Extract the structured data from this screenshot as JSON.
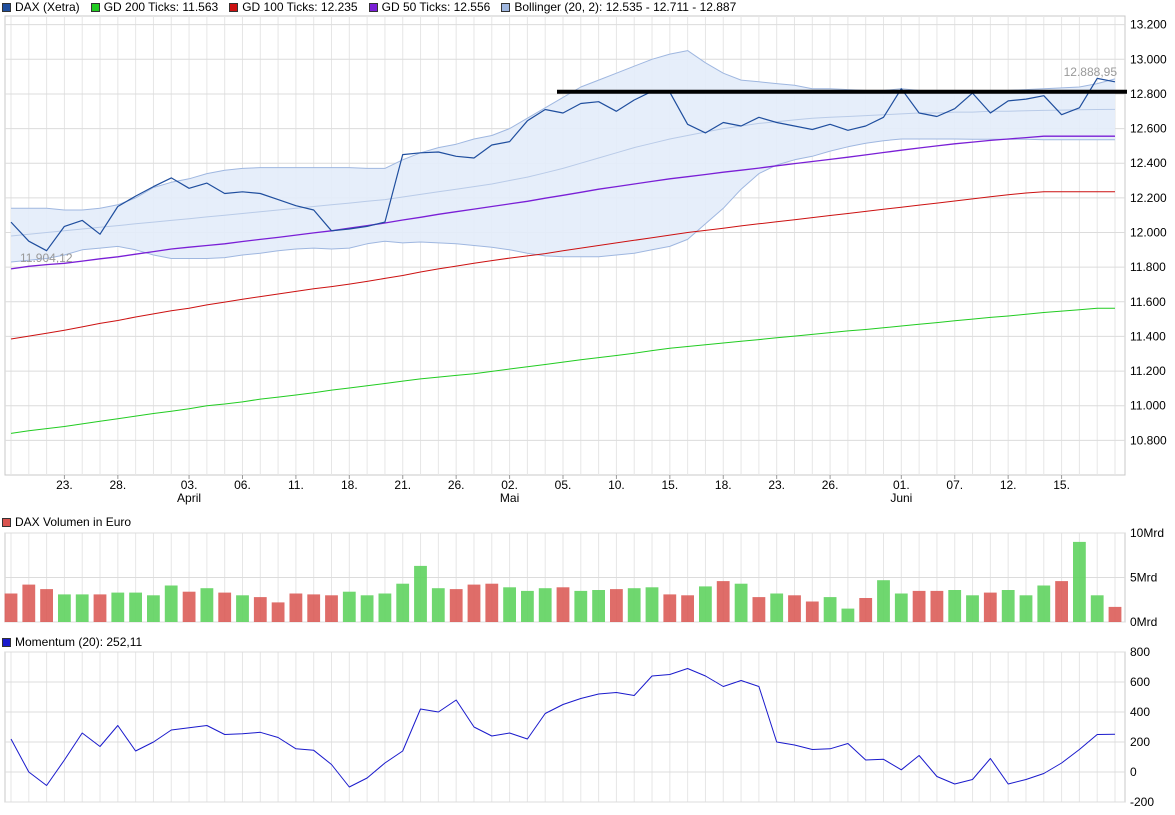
{
  "legends": {
    "price": [
      {
        "label": "DAX (Xetra)",
        "color": "#1f4e9e"
      },
      {
        "label": "GD 200 Ticks: 11.563",
        "color": "#22cc22"
      },
      {
        "label": "GD 100 Ticks: 12.235",
        "color": "#cc1111"
      },
      {
        "label": "GD 50 Ticks: 12.556",
        "color": "#7a1fd6"
      },
      {
        "label": "Bollinger (20, 2): 12.535 - 12.711 - 12.887",
        "color": "#9fb7e0"
      }
    ],
    "volume": {
      "label": "DAX Volumen in Euro",
      "color": "#d9534f"
    },
    "momentum": {
      "label": "Momentum (20): 252,11",
      "color": "#1a1acc"
    }
  },
  "annotations": {
    "last_price_label": "12.888,95",
    "low_price_label": "11.904,12"
  },
  "chart_data": [
    {
      "type": "line",
      "name": "price",
      "ylim": [
        10600,
        13250
      ],
      "yticks": [
        "10.800",
        "11.000",
        "11.200",
        "11.400",
        "11.600",
        "11.800",
        "12.000",
        "12.200",
        "12.400",
        "12.600",
        "12.800",
        "13.000",
        "13.200"
      ],
      "ytick_values": [
        10800,
        11000,
        11200,
        11400,
        11600,
        11800,
        12000,
        12200,
        12400,
        12600,
        12800,
        13000,
        13200
      ],
      "xticks": [
        "23.",
        "28.",
        "03.",
        "06.",
        "11.",
        "18.",
        "21.",
        "26.",
        "02.",
        "05.",
        "10.",
        "15.",
        "18.",
        "23.",
        "26.",
        "01.",
        "07.",
        "12.",
        "15."
      ],
      "xtick_index": [
        3,
        6,
        10,
        13,
        16,
        19,
        22,
        25,
        28,
        31,
        34,
        37,
        40,
        43,
        46,
        50,
        53,
        56,
        59
      ],
      "months": [
        "April",
        "Mai",
        "Juni"
      ],
      "month_index": [
        10,
        28,
        50
      ],
      "grid": true,
      "resistance_level": 12813,
      "resistance_start_index": 31,
      "series": [
        {
          "name": "DAX (Xetra)",
          "values": [
            12060,
            11950,
            11895,
            12035,
            12070,
            11990,
            12150,
            12210,
            12265,
            12315,
            12255,
            12285,
            12225,
            12235,
            12225,
            12190,
            12155,
            12130,
            12010,
            12020,
            12035,
            12060,
            12450,
            12460,
            12465,
            12440,
            12430,
            12505,
            12525,
            12645,
            12710,
            12690,
            12745,
            12755,
            12700,
            12765,
            12815,
            12810,
            12625,
            12575,
            12635,
            12615,
            12665,
            12635,
            12615,
            12595,
            12625,
            12590,
            12615,
            12665,
            12830,
            12690,
            12670,
            12715,
            12805,
            12690,
            12760,
            12770,
            12790,
            12680,
            12720,
            12890,
            12870
          ]
        },
        {
          "name": "GD 200 Ticks",
          "values": [
            10840,
            10856,
            10868,
            10880,
            10895,
            10910,
            10925,
            10940,
            10955,
            10968,
            10982,
            11000,
            11010,
            11022,
            11038,
            11050,
            11062,
            11075,
            11090,
            11102,
            11115,
            11128,
            11142,
            11155,
            11165,
            11175,
            11185,
            11198,
            11212,
            11225,
            11238,
            11252,
            11265,
            11278,
            11290,
            11303,
            11318,
            11332,
            11342,
            11352,
            11362,
            11372,
            11382,
            11392,
            11402,
            11412,
            11422,
            11432,
            11440,
            11450,
            11460,
            11470,
            11480,
            11490,
            11500,
            11510,
            11518,
            11528,
            11538,
            11546,
            11554,
            11563,
            11563
          ]
        },
        {
          "name": "GD 100 Ticks",
          "values": [
            11385,
            11402,
            11418,
            11436,
            11455,
            11475,
            11492,
            11512,
            11530,
            11548,
            11563,
            11582,
            11598,
            11615,
            11630,
            11645,
            11660,
            11675,
            11688,
            11702,
            11718,
            11735,
            11752,
            11772,
            11790,
            11806,
            11822,
            11838,
            11852,
            11865,
            11878,
            11895,
            11910,
            11925,
            11940,
            11955,
            11970,
            11985,
            12000,
            12012,
            12025,
            12038,
            12050,
            12062,
            12074,
            12086,
            12098,
            12110,
            12122,
            12134,
            12146,
            12158,
            12170,
            12182,
            12194,
            12206,
            12218,
            12228,
            12235,
            12235,
            12235,
            12235,
            12235
          ]
        },
        {
          "name": "GD 50 Ticks",
          "values": [
            11790,
            11805,
            11815,
            11822,
            11835,
            11848,
            11860,
            11875,
            11890,
            11905,
            11915,
            11925,
            11935,
            11948,
            11960,
            11972,
            11985,
            11998,
            12010,
            12025,
            12040,
            12055,
            12072,
            12088,
            12105,
            12120,
            12135,
            12150,
            12165,
            12180,
            12198,
            12215,
            12232,
            12250,
            12265,
            12280,
            12295,
            12310,
            12322,
            12335,
            12348,
            12360,
            12372,
            12385,
            12398,
            12410,
            12422,
            12435,
            12448,
            12462,
            12475,
            12488,
            12500,
            12512,
            12522,
            12532,
            12540,
            12548,
            12556,
            12556,
            12556,
            12556,
            12556
          ]
        },
        {
          "name": "Bollinger Upper",
          "values": [
            12140,
            12140,
            12140,
            12130,
            12130,
            12140,
            12160,
            12200,
            12260,
            12290,
            12310,
            12340,
            12360,
            12370,
            12375,
            12375,
            12375,
            12375,
            12375,
            12375,
            12370,
            12370,
            12420,
            12460,
            12490,
            12510,
            12540,
            12560,
            12600,
            12660,
            12720,
            12780,
            12840,
            12880,
            12920,
            12960,
            13000,
            13030,
            13050,
            12980,
            12920,
            12880,
            12870,
            12860,
            12850,
            12830,
            12830,
            12825,
            12820,
            12820,
            12830,
            12820,
            12820,
            12815,
            12815,
            12820,
            12820,
            12825,
            12830,
            12835,
            12840,
            12860,
            12887
          ]
        },
        {
          "name": "Bollinger Middle",
          "values": [
            11980,
            11990,
            12000,
            12010,
            12020,
            12030,
            12040,
            12050,
            12060,
            12070,
            12080,
            12090,
            12100,
            12110,
            12120,
            12130,
            12140,
            12150,
            12160,
            12170,
            12180,
            12190,
            12205,
            12220,
            12235,
            12250,
            12265,
            12280,
            12300,
            12320,
            12345,
            12370,
            12400,
            12430,
            12460,
            12490,
            12515,
            12540,
            12560,
            12580,
            12600,
            12615,
            12630,
            12640,
            12650,
            12660,
            12665,
            12670,
            12675,
            12680,
            12685,
            12690,
            12690,
            12695,
            12695,
            12700,
            12700,
            12703,
            12705,
            12707,
            12709,
            12710,
            12711
          ]
        },
        {
          "name": "Bollinger Lower",
          "values": [
            11830,
            11840,
            11850,
            11870,
            11900,
            11910,
            11920,
            11900,
            11870,
            11850,
            11850,
            11850,
            11855,
            11870,
            11880,
            11895,
            11905,
            11910,
            11905,
            11910,
            11935,
            11950,
            11940,
            11945,
            11940,
            11935,
            11925,
            11915,
            11900,
            11880,
            11865,
            11860,
            11860,
            11860,
            11870,
            11880,
            11900,
            11920,
            11960,
            12050,
            12140,
            12250,
            12340,
            12390,
            12420,
            12440,
            12470,
            12495,
            12515,
            12530,
            12540,
            12540,
            12540,
            12540,
            12538,
            12538,
            12538,
            12538,
            12536,
            12536,
            12536,
            12535,
            12535
          ]
        }
      ]
    },
    {
      "type": "bar",
      "name": "DAX Volumen in Euro",
      "ylim": [
        0,
        10
      ],
      "yticks": [
        "0Mrd",
        "5Mrd",
        "10Mrd"
      ],
      "ytick_values": [
        0,
        5,
        10
      ],
      "unit": "Mrd",
      "values": [
        3.2,
        4.2,
        3.7,
        3.1,
        3.1,
        3.1,
        3.3,
        3.3,
        3.0,
        4.1,
        3.4,
        3.8,
        3.3,
        3.0,
        2.8,
        2.2,
        3.2,
        3.1,
        3.0,
        3.4,
        3.0,
        3.2,
        4.3,
        6.3,
        3.8,
        3.7,
        4.2,
        4.3,
        3.9,
        3.5,
        3.8,
        3.9,
        3.5,
        3.6,
        3.7,
        3.8,
        3.9,
        3.1,
        3.0,
        4.0,
        4.6,
        4.3,
        2.8,
        3.2,
        3.0,
        2.3,
        2.8,
        1.5,
        2.7,
        4.7,
        3.2,
        3.5,
        3.5,
        3.6,
        3.0,
        3.3,
        3.6,
        3.0,
        4.1,
        4.6,
        9.0,
        3.0,
        1.7
      ],
      "up": [
        false,
        false,
        false,
        true,
        true,
        false,
        true,
        true,
        true,
        true,
        false,
        true,
        false,
        true,
        false,
        false,
        false,
        false,
        false,
        true,
        true,
        true,
        true,
        true,
        true,
        false,
        false,
        false,
        true,
        true,
        true,
        false,
        true,
        true,
        false,
        true,
        true,
        false,
        false,
        true,
        false,
        true,
        false,
        true,
        false,
        false,
        true,
        true,
        false,
        true,
        true,
        false,
        false,
        true,
        true,
        false,
        true,
        true,
        true,
        false,
        true,
        true,
        false
      ]
    },
    {
      "type": "line",
      "name": "Momentum (20)",
      "ylim": [
        -200,
        800
      ],
      "yticks": [
        "-200",
        "0",
        "200",
        "400",
        "600",
        "800"
      ],
      "ytick_values": [
        -200,
        0,
        200,
        400,
        600,
        800
      ],
      "values": [
        220,
        0,
        -90,
        80,
        260,
        170,
        310,
        140,
        200,
        280,
        295,
        310,
        250,
        255,
        265,
        230,
        155,
        145,
        50,
        -100,
        -40,
        60,
        140,
        420,
        400,
        480,
        300,
        240,
        260,
        220,
        390,
        450,
        490,
        520,
        530,
        510,
        640,
        650,
        690,
        640,
        570,
        610,
        570,
        200,
        180,
        150,
        155,
        190,
        80,
        85,
        15,
        110,
        -30,
        -80,
        -50,
        90,
        -80,
        -50,
        -10,
        60,
        150,
        250,
        252
      ]
    }
  ]
}
